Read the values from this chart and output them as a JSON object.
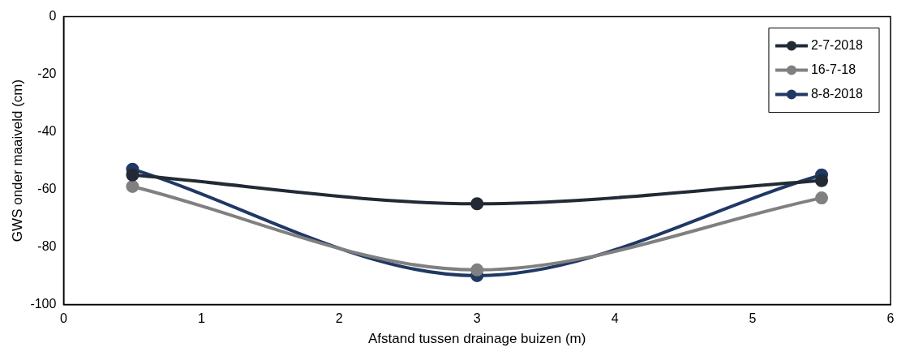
{
  "chart_data": {
    "type": "line",
    "xlabel": "Afstand tussen drainage buizen (m)",
    "ylabel": "GWS onder maaiveld (cm)",
    "x": [
      0.5,
      3,
      5.5
    ],
    "series": [
      {
        "name": "2-7-2018",
        "color": "#222a35",
        "values": [
          -55,
          -65,
          -57
        ]
      },
      {
        "name": "16-7-18",
        "color": "#808080",
        "values": [
          -59,
          -88,
          -63
        ]
      },
      {
        "name": "8-8-2018",
        "color": "#203864",
        "values": [
          -53,
          -90,
          -55
        ]
      }
    ],
    "xlim": [
      0,
      6
    ],
    "xticks": [
      0,
      1,
      2,
      3,
      4,
      5,
      6
    ],
    "ylim": [
      -100,
      0
    ],
    "yticks": [
      -100,
      -80,
      -60,
      -40,
      -20,
      0
    ],
    "grid": false,
    "legend": "top right",
    "marker": "circle",
    "line_style": "solid"
  }
}
